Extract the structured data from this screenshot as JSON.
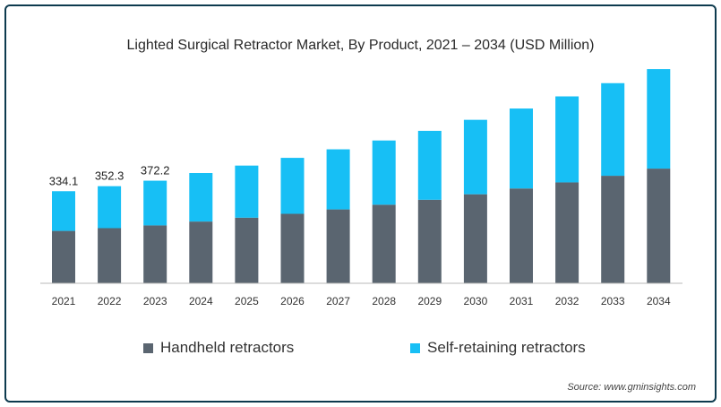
{
  "chart_data": {
    "type": "bar",
    "stacked": true,
    "title": "Lighted Surgical Retractor Market, By Product, 2021 – 2034 (USD Million)",
    "categories": [
      "2021",
      "2022",
      "2023",
      "2024",
      "2025",
      "2026",
      "2027",
      "2028",
      "2029",
      "2030",
      "2031",
      "2032",
      "2033",
      "2034"
    ],
    "series": [
      {
        "name": "Handheld retractors",
        "color": "#5a6570",
        "values": [
          190,
          200,
          210,
          224,
          238,
          252,
          268,
          285,
          303,
          323,
          344,
          366,
          390,
          416
        ]
      },
      {
        "name": "Self-retaining retractors",
        "color": "#17bff5",
        "values": [
          144.1,
          152.3,
          162.2,
          176,
          189,
          203,
          218,
          233,
          250,
          270,
          290,
          312,
          336,
          361
        ]
      }
    ],
    "data_labels": [
      "334.1",
      "352.3",
      "372.2"
    ],
    "ylim": [
      0,
      800
    ],
    "grid": false,
    "legend": "bottom"
  },
  "source": "Source: www.gminsights.com"
}
